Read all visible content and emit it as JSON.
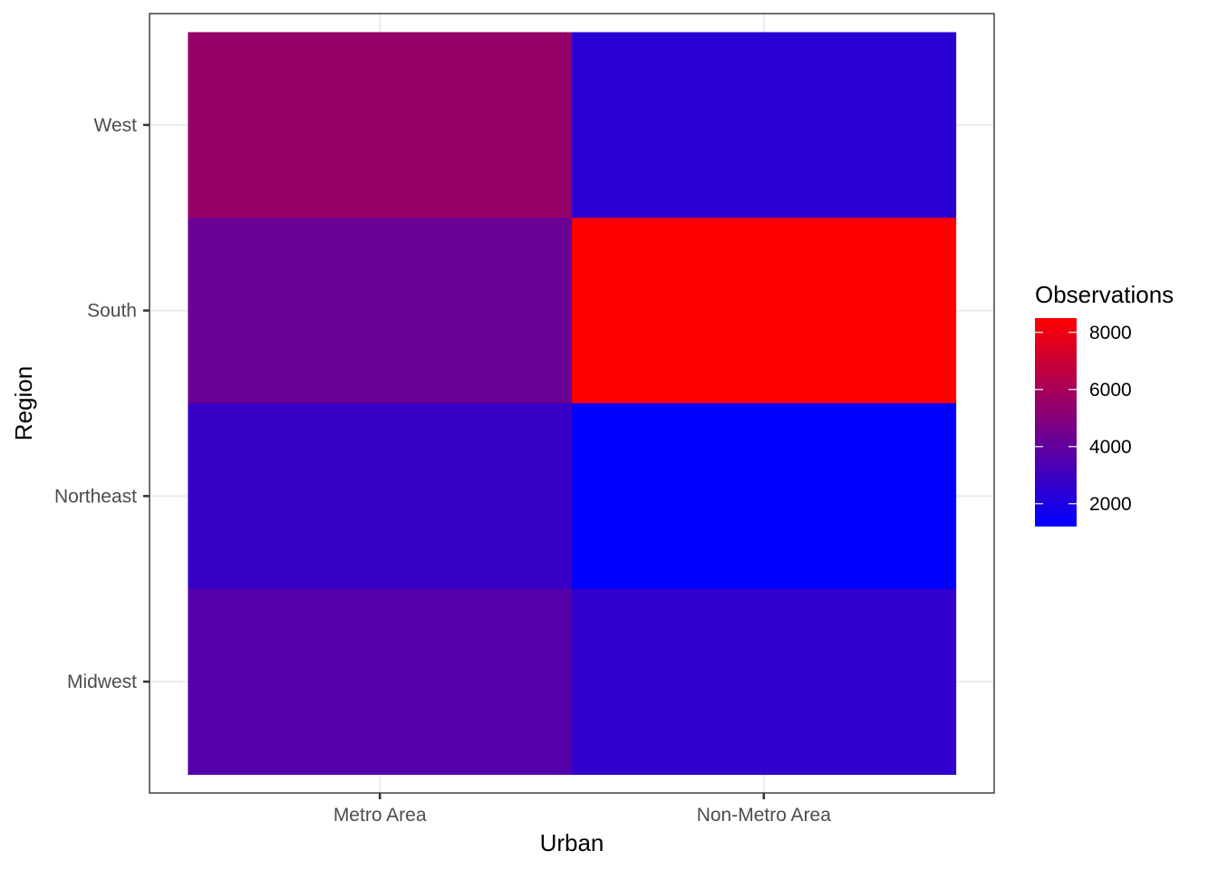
{
  "chart_data": {
    "type": "heatmap",
    "xlabel": "Urban",
    "ylabel": "Region",
    "x_categories": [
      "Metro Area",
      "Non-Metro Area"
    ],
    "y_categories": [
      "Midwest",
      "Northeast",
      "South",
      "West"
    ],
    "cells": [
      {
        "x": "Metro Area",
        "y": "West",
        "value": 5500
      },
      {
        "x": "Non-Metro Area",
        "y": "West",
        "value": 2400
      },
      {
        "x": "Metro Area",
        "y": "South",
        "value": 4250
      },
      {
        "x": "Non-Metro Area",
        "y": "South",
        "value": 8500
      },
      {
        "x": "Metro Area",
        "y": "Northeast",
        "value": 2800
      },
      {
        "x": "Non-Metro Area",
        "y": "Northeast",
        "value": 1200
      },
      {
        "x": "Metro Area",
        "y": "Midwest",
        "value": 3600
      },
      {
        "x": "Non-Metro Area",
        "y": "Midwest",
        "value": 2600
      }
    ],
    "legend": {
      "title": "Observations",
      "placement": "right",
      "low_color": "#0000ff",
      "high_color": "#ff0000",
      "range": [
        1200,
        8500
      ],
      "ticks": [
        2000,
        4000,
        6000,
        8000
      ],
      "tick_labels": [
        "2000",
        "4000",
        "6000",
        "8000"
      ]
    },
    "grid": true,
    "background": "#ffffff",
    "grid_color": "#ebebeb"
  }
}
